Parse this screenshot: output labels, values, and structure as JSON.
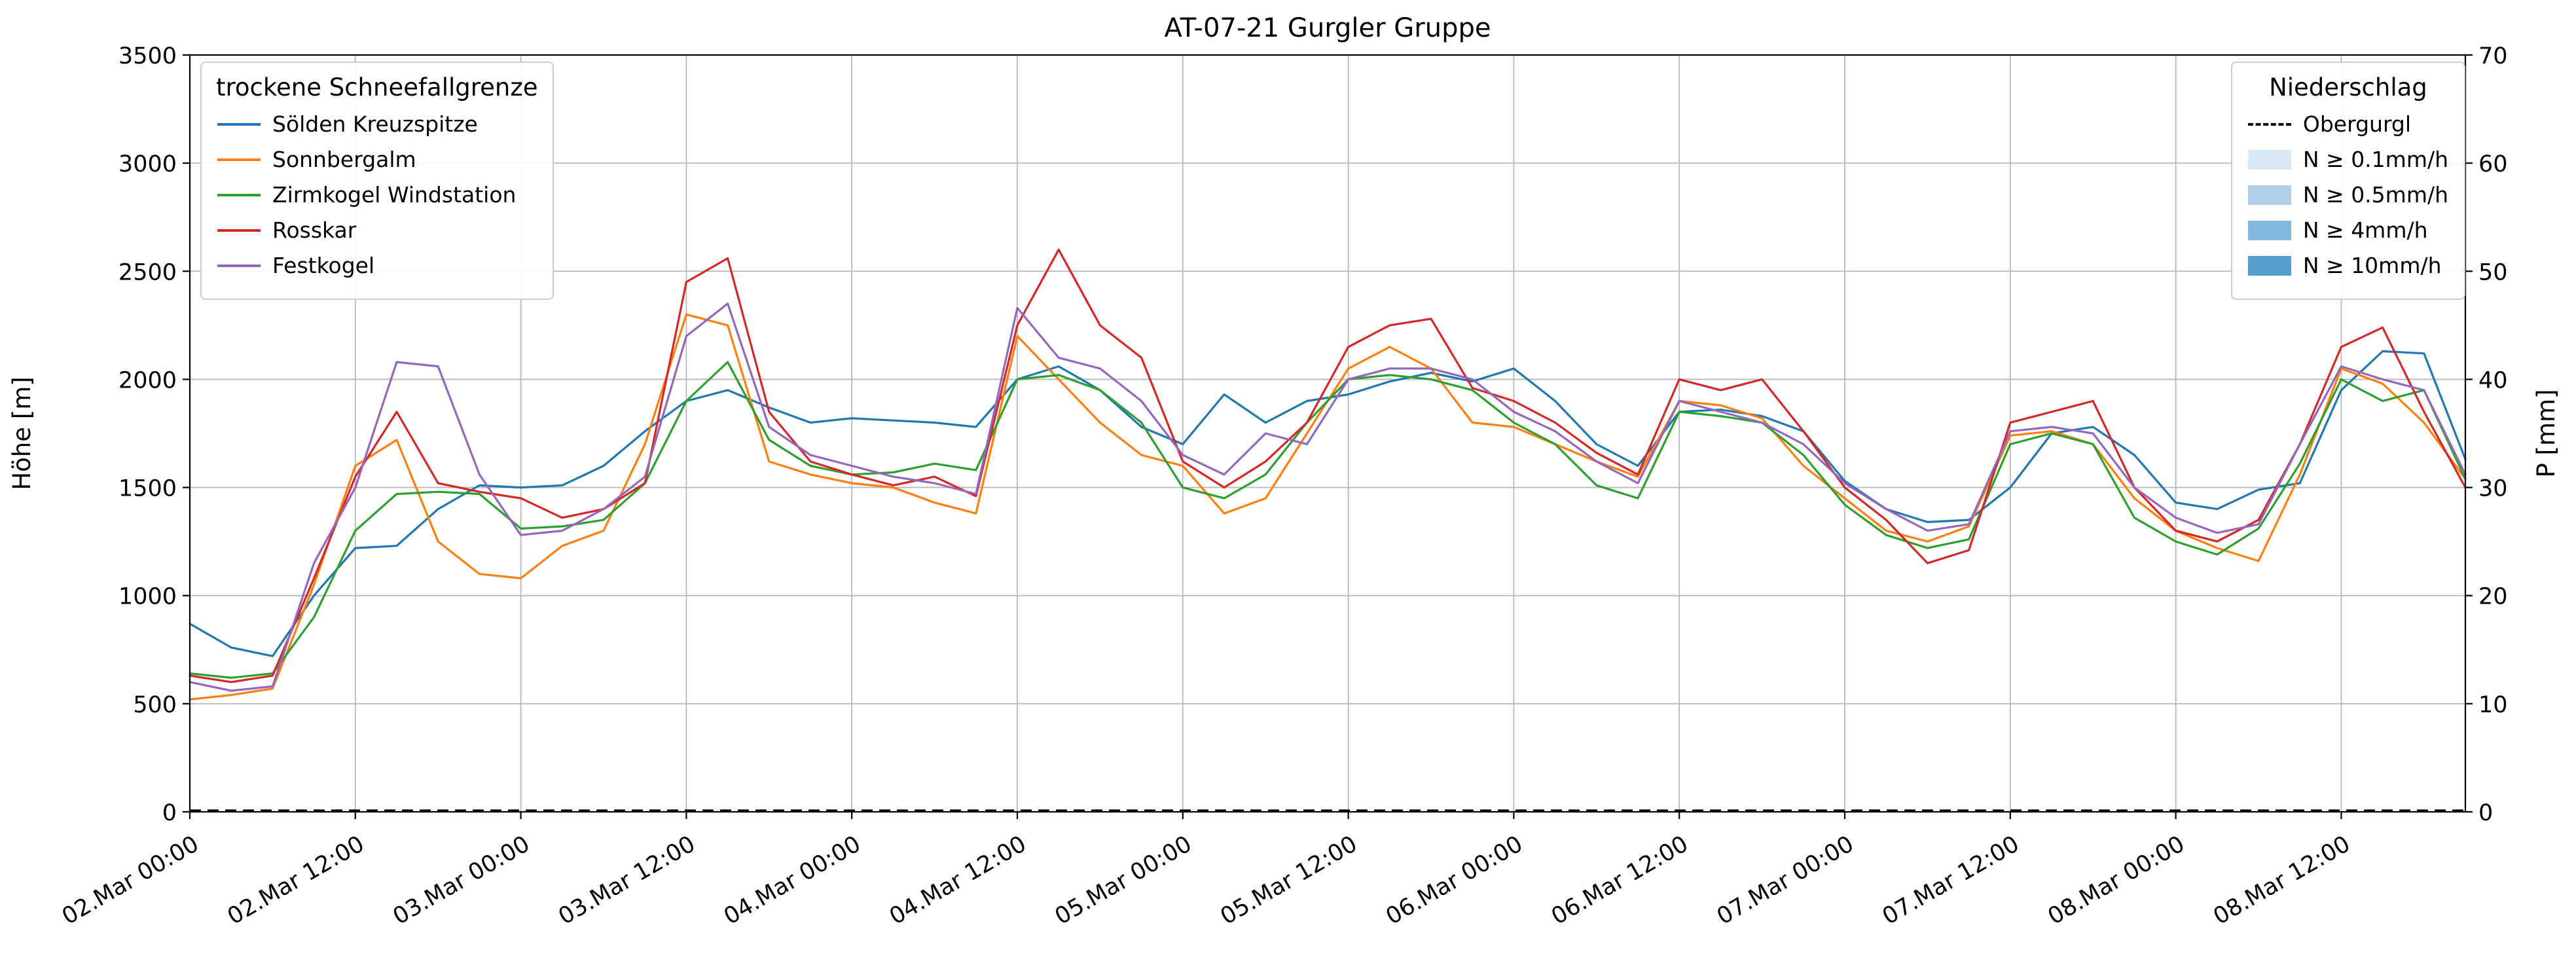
{
  "chart_data": {
    "type": "line",
    "title": "AT-07-21 Gurgler Gruppe",
    "x_unit_hours_since": "02.Mar 00:00",
    "xlim": [
      0,
      165
    ],
    "ylim_left": [
      0,
      3500
    ],
    "ylim_right": [
      0,
      70
    ],
    "grid": true,
    "x_tick_hours": [
      0,
      12,
      24,
      36,
      48,
      60,
      72,
      84,
      96,
      108,
      120,
      132,
      144,
      156
    ],
    "x": [
      0,
      3,
      6,
      9,
      12,
      15,
      18,
      21,
      24,
      27,
      30,
      33,
      36,
      39,
      42,
      45,
      48,
      51,
      54,
      57,
      60,
      63,
      66,
      69,
      72,
      75,
      78,
      81,
      84,
      87,
      90,
      93,
      96,
      99,
      102,
      105,
      108,
      111,
      114,
      117,
      120,
      123,
      126,
      129,
      132,
      135,
      138,
      141,
      144,
      147,
      150,
      153,
      156,
      159,
      162,
      165
    ],
    "series": [
      {
        "name": "Sölden Kreuzspitze",
        "color": "#1f77b4",
        "axis": "left",
        "line": "solid",
        "values": [
          870,
          760,
          720,
          1000,
          1220,
          1230,
          1400,
          1510,
          1500,
          1510,
          1600,
          1760,
          1900,
          1950,
          1870,
          1800,
          1820,
          1810,
          1800,
          1780,
          2000,
          2060,
          1950,
          1780,
          1700,
          1930,
          1800,
          1900,
          1930,
          1990,
          2030,
          1990,
          2050,
          1900,
          1700,
          1600,
          1850,
          1860,
          1830,
          1760,
          1530,
          1400,
          1340,
          1350,
          1500,
          1750,
          1780,
          1650,
          1430,
          1400,
          1490,
          1520,
          1950,
          2130,
          2120,
          1630
        ]
      },
      {
        "name": "Sonnbergalm",
        "color": "#ff7f0e",
        "axis": "left",
        "line": "solid",
        "values": [
          520,
          540,
          570,
          1050,
          1600,
          1720,
          1250,
          1100,
          1080,
          1230,
          1300,
          1700,
          2300,
          2250,
          1620,
          1560,
          1520,
          1500,
          1430,
          1380,
          2200,
          2000,
          1800,
          1650,
          1600,
          1380,
          1450,
          1750,
          2050,
          2150,
          2050,
          1800,
          1780,
          1700,
          1620,
          1550,
          1900,
          1880,
          1820,
          1600,
          1450,
          1300,
          1250,
          1320,
          1740,
          1760,
          1700,
          1450,
          1300,
          1220,
          1160,
          1560,
          2050,
          1980,
          1800,
          1540
        ]
      },
      {
        "name": "Zirmkogel Windstation",
        "color": "#2ca02c",
        "axis": "left",
        "line": "solid",
        "values": [
          640,
          620,
          640,
          900,
          1300,
          1470,
          1480,
          1470,
          1310,
          1320,
          1350,
          1520,
          1900,
          2080,
          1720,
          1600,
          1560,
          1570,
          1610,
          1580,
          2000,
          2020,
          1950,
          1800,
          1500,
          1450,
          1560,
          1800,
          2000,
          2020,
          2000,
          1950,
          1800,
          1700,
          1510,
          1450,
          1850,
          1830,
          1800,
          1650,
          1420,
          1280,
          1220,
          1260,
          1700,
          1750,
          1700,
          1360,
          1250,
          1190,
          1310,
          1610,
          2000,
          1900,
          1950,
          1540
        ]
      },
      {
        "name": "Rosskar",
        "color": "#d62728",
        "axis": "left",
        "line": "solid",
        "values": [
          630,
          600,
          630,
          1080,
          1550,
          1850,
          1520,
          1480,
          1450,
          1360,
          1400,
          1520,
          2450,
          2560,
          1850,
          1620,
          1560,
          1510,
          1550,
          1460,
          2250,
          2600,
          2250,
          2100,
          1620,
          1500,
          1620,
          1800,
          2150,
          2250,
          2280,
          1960,
          1900,
          1800,
          1660,
          1560,
          2000,
          1950,
          2000,
          1760,
          1500,
          1350,
          1150,
          1210,
          1800,
          1850,
          1900,
          1500,
          1300,
          1250,
          1350,
          1700,
          2150,
          2240,
          1850,
          1500
        ]
      },
      {
        "name": "Festkogel",
        "color": "#9467bd",
        "axis": "left",
        "line": "solid",
        "values": [
          600,
          560,
          580,
          1150,
          1500,
          2080,
          2060,
          1560,
          1280,
          1300,
          1400,
          1550,
          2200,
          2350,
          1780,
          1650,
          1600,
          1550,
          1520,
          1470,
          2330,
          2100,
          2050,
          1900,
          1650,
          1560,
          1750,
          1700,
          2000,
          2050,
          2050,
          2000,
          1850,
          1760,
          1620,
          1520,
          1900,
          1850,
          1800,
          1700,
          1520,
          1400,
          1300,
          1330,
          1760,
          1780,
          1750,
          1500,
          1360,
          1290,
          1330,
          1700,
          2060,
          2000,
          1950,
          1560
        ]
      },
      {
        "name": "Obergurgl",
        "color": "#000000",
        "axis": "right",
        "line": "dashed",
        "values_constant_mm": 0
      }
    ]
  },
  "axes": {
    "y_left": {
      "label": "Höhe [m]",
      "ticks": [
        0,
        500,
        1000,
        1500,
        2000,
        2500,
        3000,
        3500
      ]
    },
    "y_right": {
      "label": "P [mm]",
      "ticks": [
        0,
        10,
        20,
        30,
        40,
        50,
        60,
        70
      ]
    },
    "x": {
      "tick_labels": [
        "02.Mar 00:00",
        "02.Mar 12:00",
        "03.Mar 00:00",
        "03.Mar 12:00",
        "04.Mar 00:00",
        "04.Mar 12:00",
        "05.Mar 00:00",
        "05.Mar 12:00",
        "06.Mar 00:00",
        "06.Mar 12:00",
        "07.Mar 00:00",
        "07.Mar 12:00",
        "08.Mar 00:00",
        "08.Mar 12:00"
      ]
    }
  },
  "legends": {
    "snowline": {
      "title": "trockene Schneefallgrenze",
      "entries": [
        {
          "label": "Sölden Kreuzspitze",
          "color": "#1f77b4",
          "swatch": "line"
        },
        {
          "label": "Sonnbergalm",
          "color": "#ff7f0e",
          "swatch": "line"
        },
        {
          "label": "Zirmkogel Windstation",
          "color": "#2ca02c",
          "swatch": "line"
        },
        {
          "label": "Rosskar",
          "color": "#d62728",
          "swatch": "line"
        },
        {
          "label": "Festkogel",
          "color": "#9467bd",
          "swatch": "line"
        }
      ]
    },
    "precip": {
      "title": "Niederschlag",
      "entries": [
        {
          "label": "Obergurgl",
          "color": "#000000",
          "swatch": "dashed-line"
        },
        {
          "label": "N ≥ 0.1mm/h",
          "color": "#d9e8f5",
          "swatch": "patch"
        },
        {
          "label": "N ≥ 0.5mm/h",
          "color": "#b0d2e8",
          "swatch": "patch"
        },
        {
          "label": "N ≥ 4mm/h",
          "color": "#82b9dc",
          "swatch": "patch"
        },
        {
          "label": "N ≥ 10mm/h",
          "color": "#539ecc",
          "swatch": "patch"
        }
      ]
    }
  },
  "style_colors": {
    "grid": "#b8b8b8",
    "spine": "#000000",
    "text": "#000000"
  }
}
